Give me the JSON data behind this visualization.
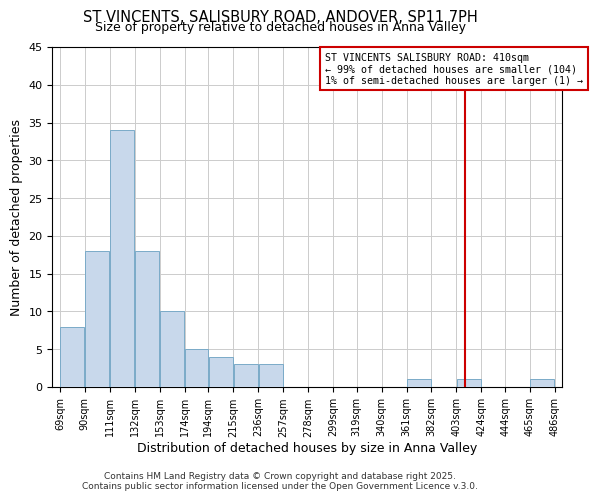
{
  "title": "ST VINCENTS, SALISBURY ROAD, ANDOVER, SP11 7PH",
  "subtitle": "Size of property relative to detached houses in Anna Valley",
  "xlabel": "Distribution of detached houses by size in Anna Valley",
  "ylabel": "Number of detached properties",
  "bar_color": "#c8d8eb",
  "bar_edge_color": "#7aaac8",
  "bins": [
    69,
    90,
    111,
    132,
    153,
    174,
    194,
    215,
    236,
    257,
    278,
    299,
    319,
    340,
    361,
    382,
    403,
    424,
    444,
    465,
    486
  ],
  "bin_labels": [
    "69sqm",
    "90sqm",
    "111sqm",
    "132sqm",
    "153sqm",
    "174sqm",
    "194sqm",
    "215sqm",
    "236sqm",
    "257sqm",
    "278sqm",
    "299sqm",
    "319sqm",
    "340sqm",
    "361sqm",
    "382sqm",
    "403sqm",
    "424sqm",
    "444sqm",
    "465sqm",
    "486sqm"
  ],
  "counts": [
    8,
    18,
    34,
    18,
    10,
    5,
    4,
    3,
    3,
    0,
    0,
    0,
    0,
    0,
    1,
    0,
    1,
    0,
    0,
    1
  ],
  "ylim": [
    0,
    45
  ],
  "yticks": [
    0,
    5,
    10,
    15,
    20,
    25,
    30,
    35,
    40,
    45
  ],
  "vline_x": 410,
  "vline_color": "#cc0000",
  "legend_text_line1": "ST VINCENTS SALISBURY ROAD: 410sqm",
  "legend_text_line2": "← 99% of detached houses are smaller (104)",
  "legend_text_line3": "1% of semi-detached houses are larger (1) →",
  "legend_box_color": "#cc0000",
  "footer1": "Contains HM Land Registry data © Crown copyright and database right 2025.",
  "footer2": "Contains public sector information licensed under the Open Government Licence v.3.0.",
  "background_color": "#ffffff",
  "grid_color": "#cccccc"
}
